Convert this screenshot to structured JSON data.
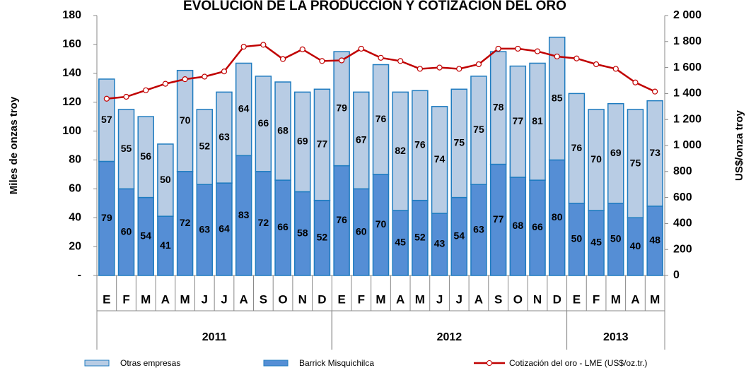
{
  "chart_data": {
    "type": "bar",
    "title": "EVOLUCIÓN DE LA PRODUCCIÓN Y COTIZACIÓN DEL ORO",
    "y_label": "Miles de onzas troy",
    "y2_label": "US$/onza troy",
    "categories": [
      "E",
      "F",
      "M",
      "A",
      "M",
      "J",
      "J",
      "A",
      "S",
      "O",
      "N",
      "D",
      "E",
      "F",
      "M",
      "A",
      "M",
      "J",
      "J",
      "A",
      "S",
      "O",
      "N",
      "D",
      "E",
      "F",
      "M",
      "A",
      "M"
    ],
    "groups": [
      {
        "label": "2011",
        "count": 12
      },
      {
        "label": "2012",
        "count": 12
      },
      {
        "label": "2013",
        "count": 5
      }
    ],
    "series": [
      {
        "name": "Barrick Misquichilca",
        "color": "#558ed5",
        "values": [
          79,
          60,
          54,
          41,
          72,
          63,
          64,
          83,
          72,
          66,
          58,
          52,
          76,
          60,
          70,
          45,
          52,
          43,
          54,
          63,
          77,
          68,
          66,
          80,
          50,
          45,
          50,
          40,
          48
        ]
      },
      {
        "name": "Otras empresas",
        "color": "#b8cce4",
        "values": [
          57,
          55,
          56,
          50,
          70,
          52,
          63,
          64,
          66,
          68,
          69,
          77,
          79,
          67,
          76,
          82,
          76,
          74,
          75,
          75,
          78,
          77,
          81,
          85,
          76,
          70,
          69,
          75,
          73
        ]
      },
      {
        "name": "Cotización del oro - LME (US$/oz.tr.)",
        "color": "#c00000",
        "type": "line",
        "axis": "y2",
        "values": [
          1360,
          1375,
          1425,
          1475,
          1510,
          1530,
          1570,
          1760,
          1775,
          1665,
          1740,
          1650,
          1655,
          1745,
          1675,
          1650,
          1590,
          1600,
          1590,
          1625,
          1745,
          1745,
          1725,
          1685,
          1670,
          1625,
          1590,
          1485,
          1415
        ]
      }
    ],
    "ylim": [
      0,
      180
    ],
    "yticks": [
      {
        "value": 0,
        "label": "-"
      },
      20,
      40,
      60,
      80,
      100,
      120,
      140,
      160,
      180
    ],
    "y2lim": [
      0,
      2000
    ],
    "y2ticks": [
      0,
      200,
      400,
      600,
      800,
      {
        "value": 1000,
        "label": "1 000"
      },
      {
        "value": 1200,
        "label": "1 200"
      },
      {
        "value": 1400,
        "label": "1 400"
      },
      {
        "value": 1600,
        "label": "1 600"
      },
      {
        "value": 1800,
        "label": "1 800"
      },
      {
        "value": 2000,
        "label": "2 000"
      }
    ],
    "stacked": true,
    "legend": "bottom"
  }
}
